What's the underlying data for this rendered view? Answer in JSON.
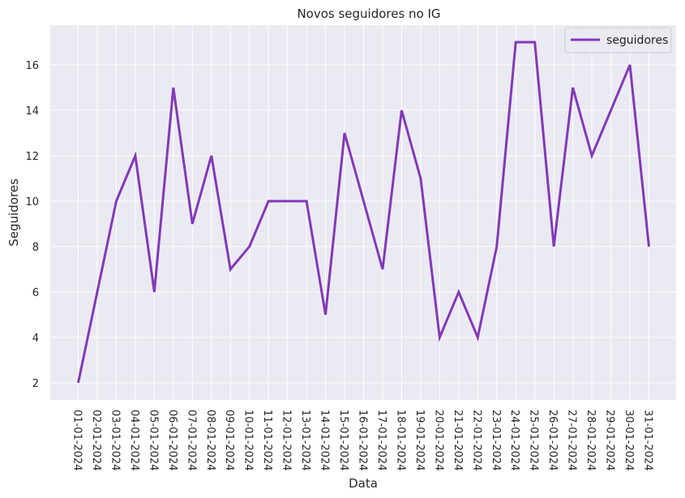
{
  "chart_data": {
    "type": "line",
    "title": "Novos seguidores no IG",
    "xlabel": "Data",
    "ylabel": "Seguidores",
    "categories": [
      "01-01-2024",
      "02-01-2024",
      "03-01-2024",
      "04-01-2024",
      "05-01-2024",
      "06-01-2024",
      "07-01-2024",
      "08-01-2024",
      "09-01-2024",
      "10-01-2024",
      "11-01-2024",
      "12-01-2024",
      "13-01-2024",
      "14-01-2024",
      "15-01-2024",
      "16-01-2024",
      "17-01-2024",
      "18-01-2024",
      "19-01-2024",
      "20-01-2024",
      "21-01-2024",
      "22-01-2024",
      "23-01-2024",
      "24-01-2024",
      "25-01-2024",
      "26-01-2024",
      "27-01-2024",
      "28-01-2024",
      "29-01-2024",
      "30-01-2024",
      "31-01-2024"
    ],
    "series": [
      {
        "name": "seguidores",
        "color": "#8338b9",
        "values": [
          2,
          6,
          10,
          12,
          6,
          15,
          9,
          12,
          7,
          8,
          10,
          10,
          10,
          5,
          13,
          10,
          7,
          14,
          11,
          4,
          6,
          4,
          8,
          17,
          17,
          8,
          15,
          12,
          14,
          16,
          8
        ]
      }
    ],
    "ylim": [
      1.25,
      17.75
    ],
    "yticks": [
      2,
      4,
      6,
      8,
      10,
      12,
      14,
      16
    ],
    "grid": true,
    "legend_position": "top-right",
    "background_color": "#eaeaf2",
    "grid_color": "#ffffff"
  }
}
